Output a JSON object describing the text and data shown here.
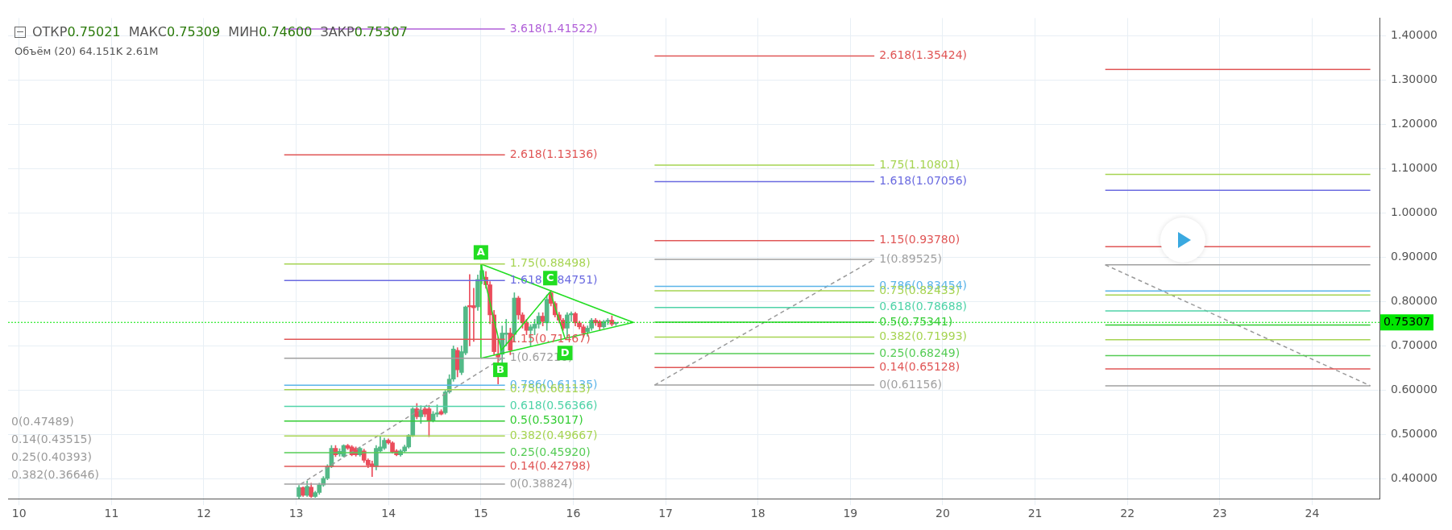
{
  "chart_data": {
    "type": "candlestick",
    "subtitle": "ОТКР0.75021 МАКС0.75309 МИН0.74600 ЗАКР0.75307",
    "xlim": [
      9.88,
      24.73
    ],
    "xticks": [
      10,
      11,
      12,
      13,
      14,
      15,
      16,
      17,
      18,
      19,
      20,
      21,
      22,
      23,
      24
    ],
    "ylim": [
      0.355,
      1.44
    ],
    "yticks": [
      {
        "value": 0.4,
        "label": "0.40000"
      },
      {
        "value": 0.5,
        "label": "0.50000"
      },
      {
        "value": 0.6,
        "label": "0.60000"
      },
      {
        "value": 0.7,
        "label": "0.70000"
      },
      {
        "value": 0.8,
        "label": "0.80000"
      },
      {
        "value": 0.9,
        "label": "0.90000"
      },
      {
        "value": 1.0,
        "label": "1.00000"
      },
      {
        "value": 1.1,
        "label": "1.10000"
      },
      {
        "value": 1.2,
        "label": "1.20000"
      },
      {
        "value": 1.3,
        "label": "1.30000"
      },
      {
        "value": 1.4,
        "label": "1.40000"
      }
    ],
    "grid": true,
    "legend": false,
    "marker": "none",
    "ref_lines": [
      {
        "axis": "y",
        "value": 0.75307,
        "label": "0.75307",
        "color": "#00e600",
        "line_style": "dotted"
      }
    ],
    "series": [
      {
        "x": [
          13.03,
          13.074,
          13.118,
          13.162,
          13.206,
          13.25,
          13.294,
          13.338,
          13.382,
          13.426,
          13.47,
          13.514,
          13.558,
          13.602,
          13.646,
          13.69,
          13.734,
          13.778,
          13.822,
          13.866,
          13.91,
          13.954,
          13.998,
          14.042,
          14.086,
          14.13,
          14.174,
          14.218,
          14.262,
          14.306,
          14.35,
          14.394,
          14.438,
          14.482,
          14.526,
          14.57,
          14.614,
          14.658,
          14.702,
          14.746,
          14.79,
          14.834,
          14.878,
          14.922,
          14.966,
          15.01,
          15.054,
          15.098,
          15.142,
          15.186,
          15.23,
          15.274,
          15.318,
          15.362,
          15.406,
          15.45,
          15.494,
          15.538,
          15.582,
          15.626,
          15.67,
          15.714,
          15.758,
          15.802,
          15.846,
          15.89,
          15.934,
          15.978,
          16.022,
          16.066,
          16.11,
          16.154,
          16.198,
          16.242,
          16.286,
          16.33,
          16.374,
          16.418,
          16.462
        ],
        "ohlc": [
          [
            0.36,
            0.385,
            0.355,
            0.38
          ],
          [
            0.38,
            0.382,
            0.36,
            0.363
          ],
          [
            0.363,
            0.395,
            0.36,
            0.383
          ],
          [
            0.381,
            0.39,
            0.358,
            0.36
          ],
          [
            0.36,
            0.372,
            0.358,
            0.369
          ],
          [
            0.369,
            0.39,
            0.365,
            0.386
          ],
          [
            0.386,
            0.405,
            0.383,
            0.401
          ],
          [
            0.401,
            0.432,
            0.398,
            0.428
          ],
          [
            0.428,
            0.475,
            0.425,
            0.469
          ],
          [
            0.469,
            0.475,
            0.45,
            0.454
          ],
          [
            0.456,
            0.468,
            0.451,
            0.462
          ],
          [
            0.451,
            0.477,
            0.449,
            0.475
          ],
          [
            0.475,
            0.478,
            0.466,
            0.469
          ],
          [
            0.472,
            0.475,
            0.452,
            0.454
          ],
          [
            0.469,
            0.472,
            0.451,
            0.454
          ],
          [
            0.454,
            0.472,
            0.451,
            0.469
          ],
          [
            0.463,
            0.467,
            0.437,
            0.442
          ],
          [
            0.442,
            0.445,
            0.425,
            0.431
          ],
          [
            0.434,
            0.44,
            0.405,
            0.428
          ],
          [
            0.428,
            0.475,
            0.42,
            0.469
          ],
          [
            0.463,
            0.495,
            0.46,
            0.472
          ],
          [
            0.469,
            0.492,
            0.466,
            0.487
          ],
          [
            0.487,
            0.49,
            0.478,
            0.481
          ],
          [
            0.481,
            0.484,
            0.458,
            0.46
          ],
          [
            0.463,
            0.466,
            0.452,
            0.454
          ],
          [
            0.454,
            0.466,
            0.451,
            0.463
          ],
          [
            0.463,
            0.476,
            0.46,
            0.472
          ],
          [
            0.472,
            0.5,
            0.469,
            0.498
          ],
          [
            0.498,
            0.561,
            0.495,
            0.558
          ],
          [
            0.558,
            0.57,
            0.535,
            0.54
          ],
          [
            0.54,
            0.565,
            0.525,
            0.555
          ],
          [
            0.558,
            0.562,
            0.54,
            0.546
          ],
          [
            0.558,
            0.566,
            0.495,
            0.531
          ],
          [
            0.531,
            0.552,
            0.528,
            0.546
          ],
          [
            0.546,
            0.567,
            0.54,
            0.549
          ],
          [
            0.552,
            0.556,
            0.544,
            0.546
          ],
          [
            0.549,
            0.6,
            0.546,
            0.596
          ],
          [
            0.596,
            0.635,
            0.593,
            0.625
          ],
          [
            0.625,
            0.7,
            0.62,
            0.693
          ],
          [
            0.69,
            0.696,
            0.63,
            0.646
          ],
          [
            0.64,
            0.7,
            0.635,
            0.687
          ],
          [
            0.684,
            0.79,
            0.68,
            0.788
          ],
          [
            0.791,
            0.861,
            0.7,
            0.788
          ],
          [
            0.791,
            0.83,
            0.71,
            0.786
          ],
          [
            0.788,
            0.86,
            0.78,
            0.85
          ],
          [
            0.85,
            0.885,
            0.84,
            0.87
          ],
          [
            0.855,
            0.868,
            0.83,
            0.838
          ],
          [
            0.838,
            0.845,
            0.75,
            0.77
          ],
          [
            0.77,
            0.78,
            0.68,
            0.687
          ],
          [
            0.681,
            0.72,
            0.614,
            0.675
          ],
          [
            0.681,
            0.745,
            0.66,
            0.729
          ],
          [
            0.726,
            0.76,
            0.7,
            0.729
          ],
          [
            0.729,
            0.74,
            0.68,
            0.69
          ],
          [
            0.726,
            0.82,
            0.71,
            0.808
          ],
          [
            0.808,
            0.812,
            0.76,
            0.77
          ],
          [
            0.77,
            0.775,
            0.74,
            0.752
          ],
          [
            0.752,
            0.76,
            0.725,
            0.735
          ],
          [
            0.735,
            0.748,
            0.7,
            0.743
          ],
          [
            0.74,
            0.76,
            0.725,
            0.749
          ],
          [
            0.749,
            0.775,
            0.74,
            0.767
          ],
          [
            0.767,
            0.775,
            0.745,
            0.755
          ],
          [
            0.752,
            0.815,
            0.735,
            0.805
          ],
          [
            0.82,
            0.825,
            0.79,
            0.796
          ],
          [
            0.796,
            0.8,
            0.765,
            0.77
          ],
          [
            0.77,
            0.776,
            0.752,
            0.758
          ],
          [
            0.758,
            0.762,
            0.735,
            0.74
          ],
          [
            0.74,
            0.775,
            0.72,
            0.77
          ],
          [
            0.77,
            0.777,
            0.755,
            0.773
          ],
          [
            0.773,
            0.776,
            0.745,
            0.752
          ],
          [
            0.752,
            0.756,
            0.738,
            0.743
          ],
          [
            0.743,
            0.748,
            0.72,
            0.729
          ],
          [
            0.732,
            0.745,
            0.722,
            0.74
          ],
          [
            0.74,
            0.762,
            0.735,
            0.758
          ],
          [
            0.758,
            0.762,
            0.746,
            0.752
          ],
          [
            0.755,
            0.758,
            0.735,
            0.743
          ],
          [
            0.743,
            0.758,
            0.74,
            0.755
          ],
          [
            0.755,
            0.762,
            0.748,
            0.758
          ],
          [
            0.758,
            0.768,
            0.745,
            0.749
          ],
          [
            0.75021,
            0.75309,
            0.746,
            0.75307
          ]
        ]
      },
      {
        "type": "line",
        "color": "#b05fd8",
        "x": [
          12.87,
          15.26
        ],
        "values": [
          1.41522,
          1.41522
        ]
      },
      {
        "type": "line",
        "color": "#e05656",
        "x": [
          12.87,
          15.26
        ],
        "values": [
          1.13136,
          1.13136
        ]
      },
      {
        "type": "line",
        "color": "#a6d452",
        "x": [
          12.87,
          15.26
        ],
        "values": [
          0.88498,
          0.88498
        ]
      },
      {
        "type": "line",
        "color": "#6a6ae0",
        "x": [
          12.87,
          15.26
        ],
        "values": [
          0.84751,
          0.84751
        ]
      },
      {
        "type": "line",
        "color": "#e05656",
        "x": [
          12.87,
          15.26
        ],
        "values": [
          0.71467,
          0.71467
        ]
      },
      {
        "type": "line",
        "color": "#a0a0a0",
        "x": [
          12.87,
          15.26
        ],
        "values": [
          0.6721,
          0.6721
        ]
      },
      {
        "type": "line",
        "color": "#5ab4e8",
        "x": [
          12.87,
          15.26
        ],
        "values": [
          0.61135,
          0.61135
        ]
      },
      {
        "type": "line",
        "color": "#a6d452",
        "x": [
          12.87,
          15.26
        ],
        "values": [
          0.60113,
          0.60113
        ]
      },
      {
        "type": "line",
        "color": "#4fd3a8",
        "x": [
          12.87,
          15.26
        ],
        "values": [
          0.56366,
          0.56366
        ]
      },
      {
        "type": "line",
        "color": "#33cc33",
        "x": [
          12.87,
          15.26
        ],
        "values": [
          0.53017,
          0.53017
        ]
      },
      {
        "type": "line",
        "color": "#a6d452",
        "x": [
          12.87,
          15.26
        ],
        "values": [
          0.49667,
          0.49667
        ]
      },
      {
        "type": "line",
        "color": "#55cc55",
        "x": [
          12.87,
          15.26
        ],
        "values": [
          0.4592,
          0.4592
        ]
      },
      {
        "type": "line",
        "color": "#e05656",
        "x": [
          12.87,
          15.26
        ],
        "values": [
          0.42798,
          0.42798
        ]
      },
      {
        "type": "line",
        "color": "#a0a0a0",
        "x": [
          12.87,
          15.26
        ],
        "values": [
          0.38824,
          0.38824
        ]
      },
      {
        "type": "line",
        "color": "#e05656",
        "x": [
          16.88,
          19.26
        ],
        "values": [
          1.35424,
          1.35424
        ]
      },
      {
        "type": "line",
        "color": "#a6d452",
        "x": [
          16.88,
          19.26
        ],
        "values": [
          1.10801,
          1.10801
        ]
      },
      {
        "type": "line",
        "color": "#6a6ae0",
        "x": [
          16.88,
          19.26
        ],
        "values": [
          1.07056,
          1.07056
        ]
      },
      {
        "type": "line",
        "color": "#e05656",
        "x": [
          16.88,
          19.26
        ],
        "values": [
          0.9378,
          0.9378
        ]
      },
      {
        "type": "line",
        "color": "#a0a0a0",
        "x": [
          16.88,
          19.26
        ],
        "values": [
          0.89525,
          0.89525
        ]
      },
      {
        "type": "line",
        "color": "#5ab4e8",
        "x": [
          16.88,
          19.26
        ],
        "values": [
          0.83454,
          0.83454
        ]
      },
      {
        "type": "line",
        "color": "#a6d452",
        "x": [
          16.88,
          19.26
        ],
        "values": [
          0.82433,
          0.82433
        ]
      },
      {
        "type": "line",
        "color": "#4fd3a8",
        "x": [
          16.88,
          19.26
        ],
        "values": [
          0.78688,
          0.78688
        ]
      },
      {
        "type": "line",
        "color": "#33cc33",
        "x": [
          16.88,
          19.26
        ],
        "values": [
          0.75341,
          0.75341
        ]
      },
      {
        "type": "line",
        "color": "#a6d452",
        "x": [
          16.88,
          19.26
        ],
        "values": [
          0.71993,
          0.71993
        ]
      },
      {
        "type": "line",
        "color": "#55cc55",
        "x": [
          16.88,
          19.26
        ],
        "values": [
          0.68249,
          0.68249
        ]
      },
      {
        "type": "line",
        "color": "#e05656",
        "x": [
          16.88,
          19.26
        ],
        "values": [
          0.65128,
          0.65128
        ]
      },
      {
        "type": "line",
        "color": "#a0a0a0",
        "x": [
          16.88,
          19.26
        ],
        "values": [
          0.61156,
          0.61156
        ]
      },
      {
        "type": "line",
        "color": "#e05656",
        "x": [
          21.76,
          24.63
        ],
        "values": [
          1.324,
          1.324
        ]
      },
      {
        "type": "line",
        "color": "#a6d452",
        "x": [
          21.76,
          24.63
        ],
        "values": [
          1.087,
          1.087
        ]
      },
      {
        "type": "line",
        "color": "#6a6ae0",
        "x": [
          21.76,
          24.63
        ],
        "values": [
          1.051,
          1.051
        ]
      },
      {
        "type": "line",
        "color": "#e05656",
        "x": [
          21.76,
          24.63
        ],
        "values": [
          0.924,
          0.924
        ]
      },
      {
        "type": "line",
        "color": "#a0a0a0",
        "x": [
          21.76,
          24.63
        ],
        "values": [
          0.883,
          0.883
        ]
      },
      {
        "type": "line",
        "color": "#5ab4e8",
        "x": [
          21.76,
          24.63
        ],
        "values": [
          0.824,
          0.824
        ]
      },
      {
        "type": "line",
        "color": "#a6d452",
        "x": [
          21.76,
          24.63
        ],
        "values": [
          0.815,
          0.815
        ]
      },
      {
        "type": "line",
        "color": "#4fd3a8",
        "x": [
          21.76,
          24.63
        ],
        "values": [
          0.779,
          0.779
        ]
      },
      {
        "type": "line",
        "color": "#33cc33",
        "x": [
          21.76,
          24.63
        ],
        "values": [
          0.747,
          0.747
        ]
      },
      {
        "type": "line",
        "color": "#a6d452",
        "x": [
          21.76,
          24.63
        ],
        "values": [
          0.714,
          0.714
        ]
      },
      {
        "type": "line",
        "color": "#55cc55",
        "x": [
          21.76,
          24.63
        ],
        "values": [
          0.678,
          0.678
        ]
      },
      {
        "type": "line",
        "color": "#e05656",
        "x": [
          21.76,
          24.63
        ],
        "values": [
          0.648,
          0.648
        ]
      },
      {
        "type": "line",
        "color": "#a0a0a0",
        "x": [
          21.76,
          24.63
        ],
        "values": [
          0.61,
          0.61
        ]
      },
      {
        "type": "line",
        "color": "#999999",
        "line_style": "dashed",
        "x": [
          13.05,
          15.23
        ],
        "values": [
          0.38824,
          0.6721
        ]
      },
      {
        "type": "line",
        "color": "#999999",
        "line_style": "dashed",
        "x": [
          16.88,
          19.26
        ],
        "values": [
          0.61156,
          0.89525
        ]
      },
      {
        "type": "line",
        "color": "#999999",
        "line_style": "dashed",
        "x": [
          21.76,
          24.63
        ],
        "values": [
          0.883,
          0.61
        ]
      },
      {
        "type": "line",
        "color": "#22dd22",
        "x": [
          15.0,
          16.65
        ],
        "values": [
          0.885,
          0.753
        ]
      },
      {
        "type": "line",
        "color": "#22dd22",
        "x": [
          15.0,
          16.65
        ],
        "values": [
          0.6721,
          0.753
        ]
      },
      {
        "type": "line",
        "color": "#22dd22",
        "x": [
          15.0,
          15.0
        ],
        "values": [
          0.6721,
          0.885
        ]
      },
      {
        "type": "line",
        "color": "#22dd22",
        "x": [
          15.0,
          15.22,
          15.75,
          15.91
        ],
        "values": [
          0.885,
          0.69,
          0.822,
          0.717
        ]
      }
    ],
    "annotations": [
      "Объём (20) 64.151K 2.61M",
      "0(0.47489)",
      "0.14(0.43515)",
      "0.25(0.40393)",
      "0.382(0.36646)",
      {
        "text": "3.618(1.41522)",
        "x": 15.26,
        "y": 1.41522
      },
      {
        "text": "2.618(1.13136)",
        "x": 15.26,
        "y": 1.13136
      },
      {
        "text": "1.75(0.88498)",
        "x": 15.26,
        "y": 0.88498
      },
      {
        "text": "1.618(0.84751)",
        "x": 15.26,
        "y": 0.84751
      },
      {
        "text": "1.15(0.71467)",
        "x": 15.26,
        "y": 0.71467
      },
      {
        "text": "1(0.67210)",
        "x": 15.26,
        "y": 0.6721
      },
      {
        "text": "0.786(0.61135)",
        "x": 15.26,
        "y": 0.61135
      },
      {
        "text": "0.75(0.60113)",
        "x": 15.26,
        "y": 0.60113
      },
      {
        "text": "0.618(0.56366)",
        "x": 15.26,
        "y": 0.56366
      },
      {
        "text": "0.5(0.53017)",
        "x": 15.26,
        "y": 0.53017
      },
      {
        "text": "0.382(0.49667)",
        "x": 15.26,
        "y": 0.49667
      },
      {
        "text": "0.25(0.45920)",
        "x": 15.26,
        "y": 0.4592
      },
      {
        "text": "0.14(0.42798)",
        "x": 15.26,
        "y": 0.42798
      },
      {
        "text": "0(0.38824)",
        "x": 15.26,
        "y": 0.38824
      },
      {
        "text": "2.618(1.35424)",
        "x": 19.26,
        "y": 1.35424
      },
      {
        "text": "1.75(1.10801)",
        "x": 19.26,
        "y": 1.10801
      },
      {
        "text": "1.618(1.07056)",
        "x": 19.26,
        "y": 1.07056
      },
      {
        "text": "1.15(0.93780)",
        "x": 19.26,
        "y": 0.9378
      },
      {
        "text": "1(0.89525)",
        "x": 19.26,
        "y": 0.89525
      },
      {
        "text": "0.786(0.83454)",
        "x": 19.26,
        "y": 0.83454
      },
      {
        "text": "0.75(0.82433)",
        "x": 19.26,
        "y": 0.82433
      },
      {
        "text": "0.618(0.78688)",
        "x": 19.26,
        "y": 0.78688
      },
      {
        "text": "0.5(0.75341)",
        "x": 19.26,
        "y": 0.75341
      },
      {
        "text": "0.382(0.71993)",
        "x": 19.26,
        "y": 0.71993
      },
      {
        "text": "0.25(0.68249)",
        "x": 19.26,
        "y": 0.68249
      },
      {
        "text": "0.14(0.65128)",
        "x": 19.26,
        "y": 0.65128
      },
      {
        "text": "0(0.61156)",
        "x": 19.26,
        "y": 0.61156
      },
      {
        "text": "A",
        "x": 15.0,
        "y": 0.911
      },
      {
        "text": "B",
        "x": 15.21,
        "y": 0.646
      },
      {
        "text": "C",
        "x": 15.75,
        "y": 0.853
      },
      {
        "text": "D",
        "x": 15.91,
        "y": 0.684
      }
    ]
  }
}
